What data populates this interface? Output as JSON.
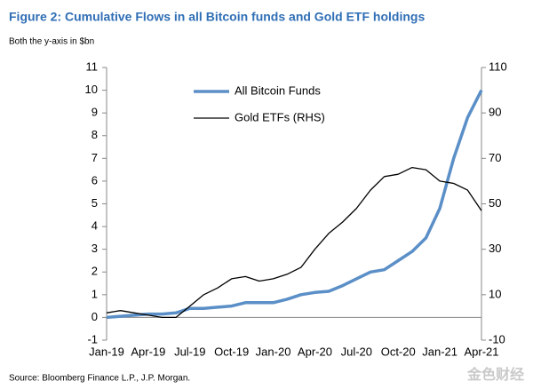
{
  "chart_data": {
    "type": "line",
    "title": "Figure 2: Cumulative Flows in all Bitcoin funds and Gold ETF holdings",
    "subtitle": "Both the y-axis in $bn",
    "source": "Source: Bloomberg Finance L.P., J.P. Morgan.",
    "watermark": "金色财经",
    "categories": [
      "Jan-19",
      null,
      null,
      "Apr-19",
      null,
      null,
      "Jul-19",
      null,
      null,
      "Oct-19",
      null,
      null,
      "Jan-20",
      null,
      null,
      "Apr-20",
      null,
      null,
      "Jul-20",
      null,
      null,
      "Oct-20",
      null,
      null,
      "Jan-21",
      null,
      null,
      "Apr-21"
    ],
    "series": [
      {
        "name": "All Bitcoin Funds",
        "color": "#5b8fc7",
        "values": [
          0,
          0.05,
          0.1,
          0.15,
          0.15,
          0.2,
          0.4,
          0.4,
          0.45,
          0.5,
          0.65,
          0.65,
          0.65,
          0.8,
          1.0,
          1.1,
          1.15,
          1.4,
          1.7,
          2.0,
          2.1,
          2.5,
          2.9,
          3.5,
          4.8,
          7.0,
          8.8,
          10.0
        ]
      },
      {
        "name": "Gold ETFs (RHS)",
        "color": "#000000",
        "axis": "y2",
        "values": [
          2,
          3,
          2,
          1,
          0,
          0,
          5,
          10,
          13,
          17,
          18,
          16,
          17,
          19,
          22,
          30,
          37,
          42,
          48,
          56,
          62,
          63,
          66,
          65,
          60,
          59,
          56,
          47
        ]
      }
    ],
    "ylim": [
      -1,
      11
    ],
    "yticks": [
      -1,
      0,
      1,
      2,
      3,
      4,
      5,
      6,
      7,
      8,
      9,
      10,
      11
    ],
    "y2lim": [
      -10,
      110
    ],
    "y2ticks": [
      -10,
      10,
      30,
      50,
      70,
      90,
      110
    ],
    "legend": "top-center"
  }
}
